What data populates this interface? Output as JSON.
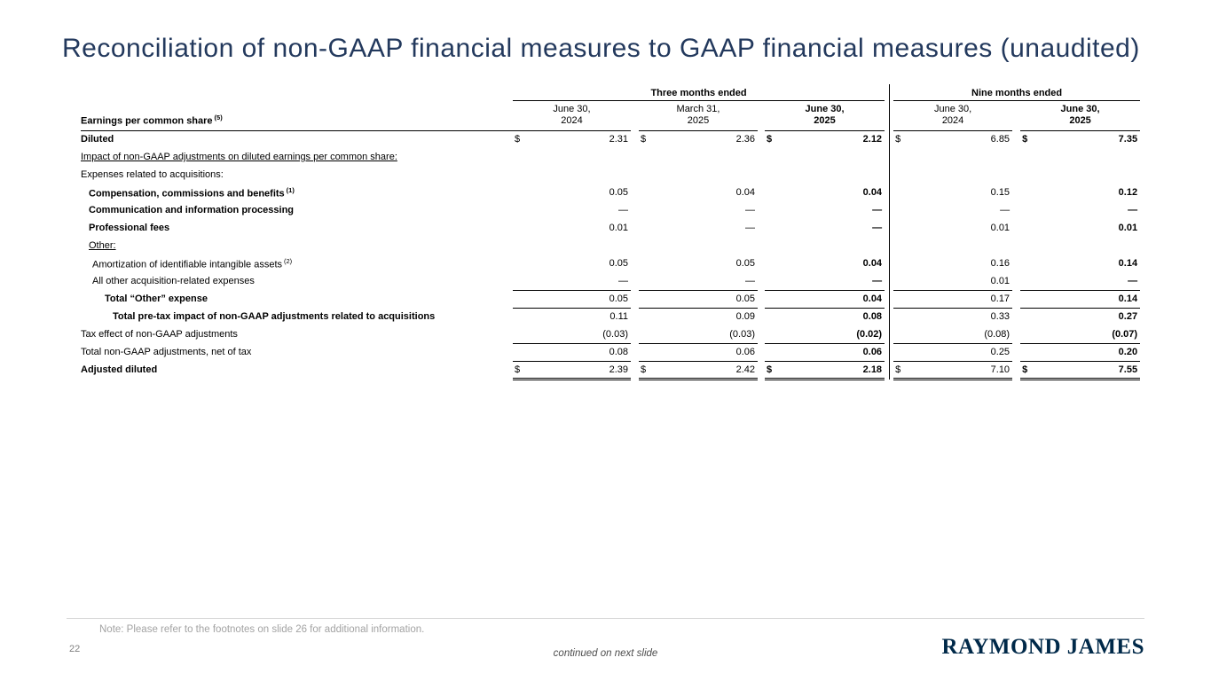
{
  "slide": {
    "title": "Reconciliation of non-GAAP financial measures to GAAP financial measures (unaudited)",
    "note": "Note: Please refer to the footnotes on slide 26 for additional information.",
    "page_number": "22",
    "continued_text": "continued on next slide",
    "logo_text": "RAYMOND JAMES"
  },
  "colors": {
    "title": "#23395d",
    "logo": "#002949",
    "note_text": "#a3a3a3",
    "page_number": "#808080",
    "continued_text": "#4d4d4d",
    "table_rules": "#000000",
    "footer_divider": "#d9d9d9"
  },
  "table": {
    "group_headers": [
      {
        "label": "Three months ended"
      },
      {
        "label": "Nine months ended"
      }
    ],
    "row_header": {
      "label": "Earnings per common share",
      "sup": "(5)"
    },
    "columns": [
      {
        "line1": "June 30,",
        "line2": "2024",
        "bold": false
      },
      {
        "line1": "March 31,",
        "line2": "2025",
        "bold": false
      },
      {
        "line1": "June 30,",
        "line2": "2025",
        "bold": true
      },
      {
        "line1": "June 30,",
        "line2": "2024",
        "bold": false
      },
      {
        "line1": "June 30,",
        "line2": "2025",
        "bold": true
      }
    ],
    "rows": [
      {
        "label": "Diluted",
        "bold": true,
        "indent": 0,
        "dollar": true,
        "values": [
          "2.31",
          "2.36",
          "2.12",
          "6.85",
          "7.35"
        ]
      },
      {
        "label": "Impact of non-GAAP adjustments on diluted earnings per common share:",
        "underline": true,
        "indent": 0
      },
      {
        "label": "Expenses related to acquisitions:",
        "indent": 0
      },
      {
        "label": "Compensation, commissions and benefits",
        "sup": "(1)",
        "bold": true,
        "indent": 1,
        "values": [
          "0.05",
          "0.04",
          "0.04",
          "0.15",
          "0.12"
        ]
      },
      {
        "label": "Communication and information processing",
        "bold": true,
        "indent": 1,
        "values": [
          "—",
          "—",
          "—",
          "—",
          "—"
        ]
      },
      {
        "label": "Professional fees",
        "bold": true,
        "indent": 1,
        "values": [
          "0.01",
          "—",
          "—",
          "0.01",
          "0.01"
        ]
      },
      {
        "label": "Other:",
        "underline": true,
        "indent": 1
      },
      {
        "label": "Amortization of identifiable intangible assets",
        "sup": "(2)",
        "indent": 2,
        "values": [
          "0.05",
          "0.05",
          "0.04",
          "0.16",
          "0.14"
        ]
      },
      {
        "label": "All other acquisition-related expenses",
        "indent": 2,
        "values": [
          "—",
          "—",
          "—",
          "0.01",
          "—"
        ],
        "rule": "single"
      },
      {
        "label": "Total “Other” expense",
        "bold": true,
        "indent": 3,
        "values": [
          "0.05",
          "0.05",
          "0.04",
          "0.17",
          "0.14"
        ],
        "rule": "single"
      },
      {
        "label": "Total pre-tax impact of non-GAAP adjustments related to acquisitions",
        "bold": true,
        "indent": 4,
        "values": [
          "0.11",
          "0.09",
          "0.08",
          "0.33",
          "0.27"
        ]
      },
      {
        "label": "Tax effect of non-GAAP adjustments",
        "indent": 0,
        "values": [
          "(0.03)",
          "(0.03)",
          "(0.02)",
          "(0.08)",
          "(0.07)"
        ],
        "rule": "single"
      },
      {
        "label": "Total non-GAAP adjustments, net of tax",
        "indent": 0,
        "values": [
          "0.08",
          "0.06",
          "0.06",
          "0.25",
          "0.20"
        ],
        "rule": "single"
      },
      {
        "label": "Adjusted diluted",
        "bold": true,
        "indent": 0,
        "dollar": true,
        "values": [
          "2.39",
          "2.42",
          "2.18",
          "7.10",
          "7.55"
        ],
        "rule": "double"
      }
    ]
  }
}
